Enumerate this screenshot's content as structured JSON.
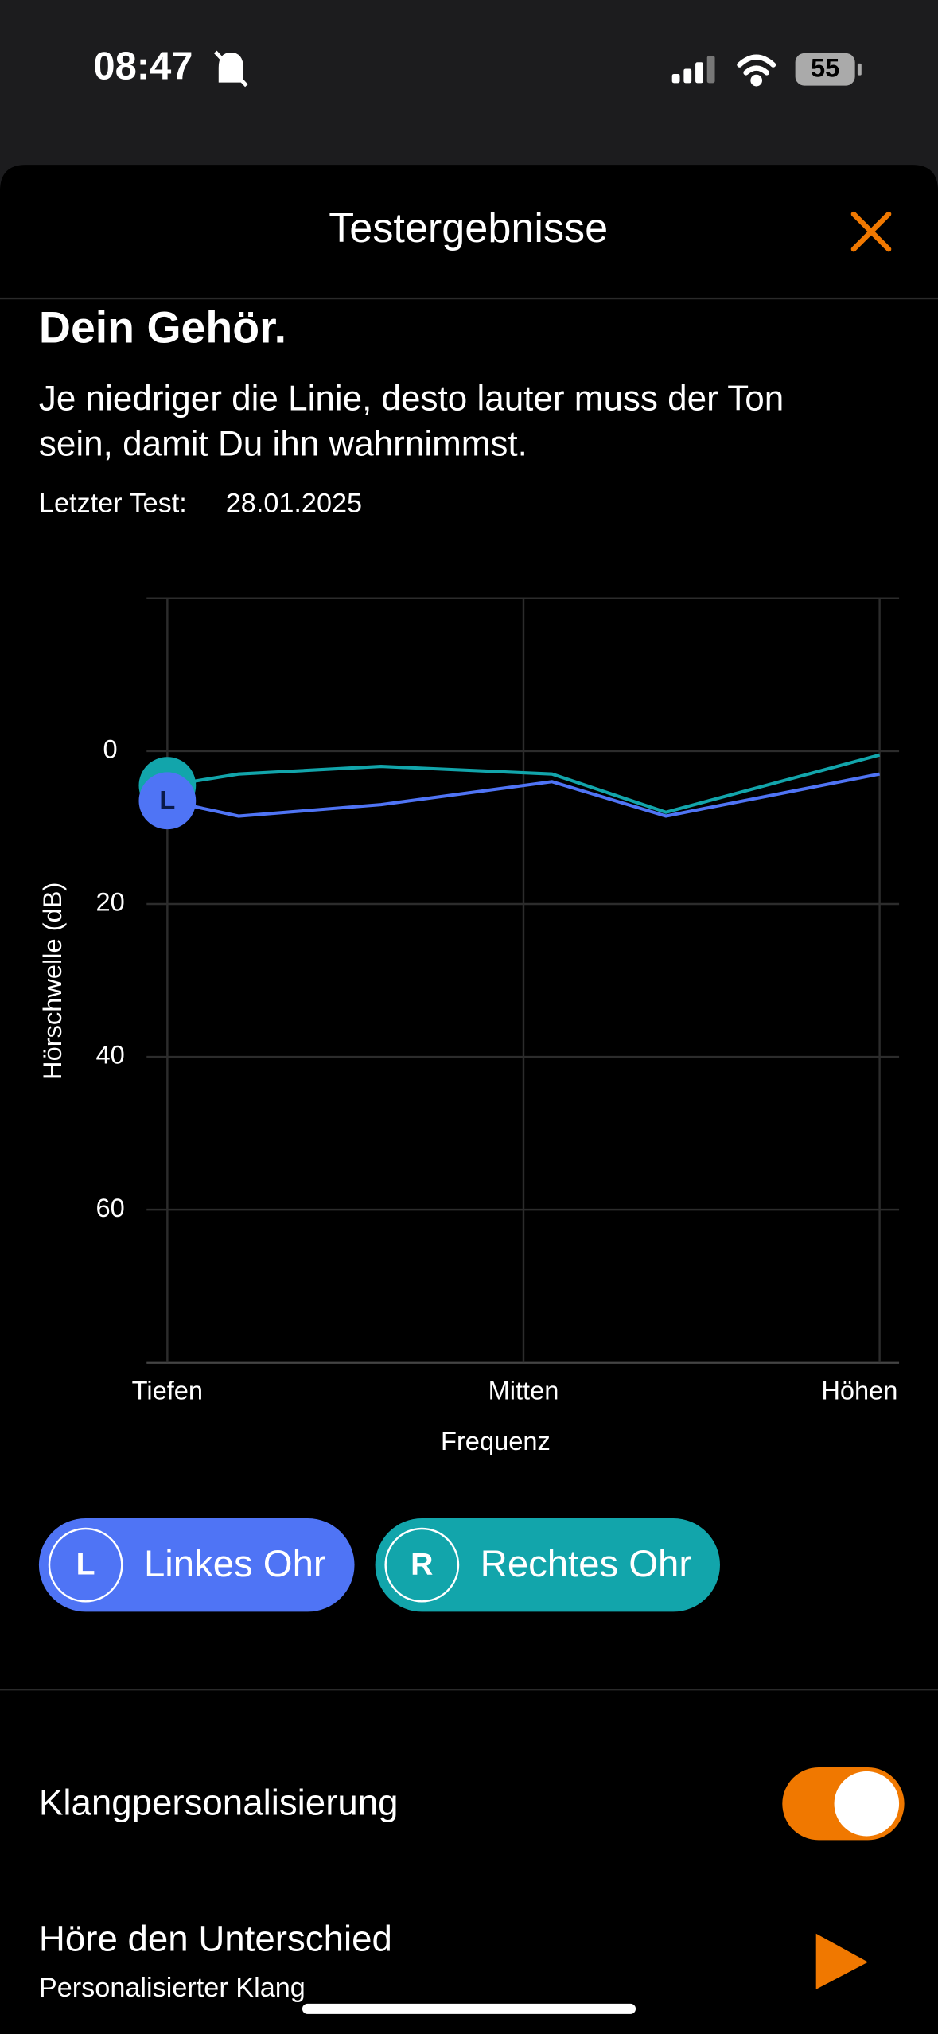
{
  "status_bar": {
    "time": "08:47",
    "battery": "55"
  },
  "header": {
    "title": "Testergebnisse"
  },
  "section": {
    "heading": "Dein Gehör.",
    "description_lines": [
      "Je niedriger die Linie, desto lauter muss der Ton",
      "sein, damit Du ihn wahrnimmst."
    ],
    "last_test_label": "Letzter Test:",
    "last_test_date": "28.01.2025"
  },
  "chart_data": {
    "type": "line",
    "y_label": "Hörschwelle (dB)",
    "x_label": "Frequenz",
    "x": [
      0,
      0.1,
      0.3,
      0.54,
      0.7,
      1
    ],
    "xlim": [
      0,
      1
    ],
    "xticks": [
      {
        "value": 0,
        "label": "Tiefen"
      },
      {
        "value": 0.5,
        "label": "Mitten"
      },
      {
        "value": 1,
        "label": "Höhen"
      }
    ],
    "ylim": [
      -20,
      80
    ],
    "yticks": [
      0,
      20,
      40,
      60
    ],
    "y_inverted": true,
    "grid": true,
    "series": [
      {
        "name": "Linkes Ohr",
        "badge": "L",
        "color": "#4f74f5",
        "values": [
          6.5,
          8.5,
          7,
          4,
          8.5,
          3
        ]
      },
      {
        "name": "Rechtes Ohr",
        "badge": "R",
        "color": "#12a5ab",
        "values": [
          4.5,
          3,
          2,
          3,
          8,
          0.5
        ]
      }
    ]
  },
  "settings": {
    "personalization_label": "Klangpersonalisierung",
    "personalization_on": true,
    "compare_title": "Höre den Unterschied",
    "compare_subtitle": "Personalisierter Klang"
  }
}
